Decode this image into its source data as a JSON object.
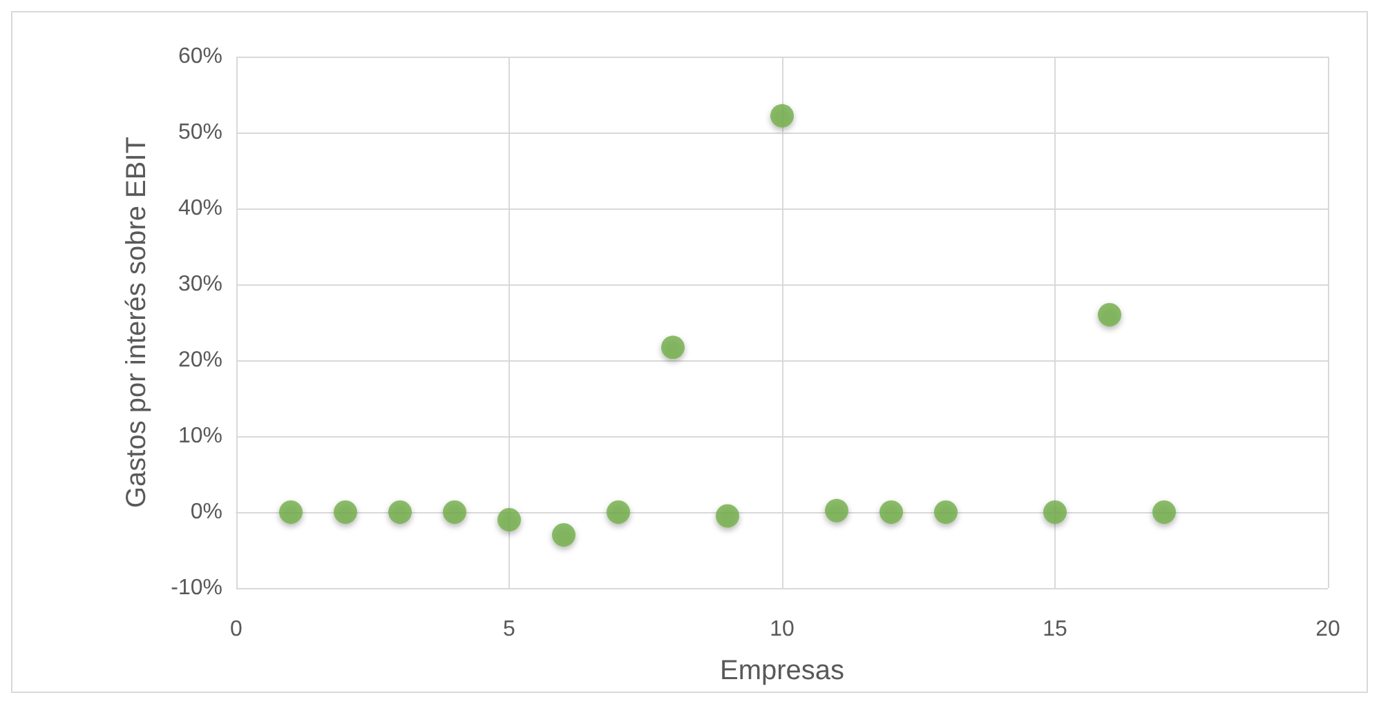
{
  "chart_data": {
    "type": "scatter",
    "xlabel": "Empresas",
    "ylabel": "Gastos por interés sobre EBIT",
    "x": [
      1,
      2,
      3,
      4,
      5,
      6,
      7,
      8,
      9,
      10,
      11,
      12,
      13,
      15,
      16,
      17
    ],
    "values": [
      0,
      0,
      0,
      0,
      -1,
      -3,
      0,
      21.7,
      -0.5,
      52.2,
      0.2,
      0,
      0,
      0,
      26,
      0
    ],
    "color": "#70ad47",
    "xlim": [
      0,
      20
    ],
    "xticks": [
      0,
      5,
      10,
      15,
      20
    ],
    "ylim": [
      -10,
      60
    ],
    "yticks": [
      {
        "value": -10,
        "label": "-10%"
      },
      {
        "value": 0,
        "label": "0%"
      },
      {
        "value": 10,
        "label": "10%"
      },
      {
        "value": 20,
        "label": "20%"
      },
      {
        "value": 30,
        "label": "30%"
      },
      {
        "value": 40,
        "label": "40%"
      },
      {
        "value": 50,
        "label": "50%"
      },
      {
        "value": 60,
        "label": "60%"
      }
    ],
    "grid": true,
    "marker": "circle"
  }
}
